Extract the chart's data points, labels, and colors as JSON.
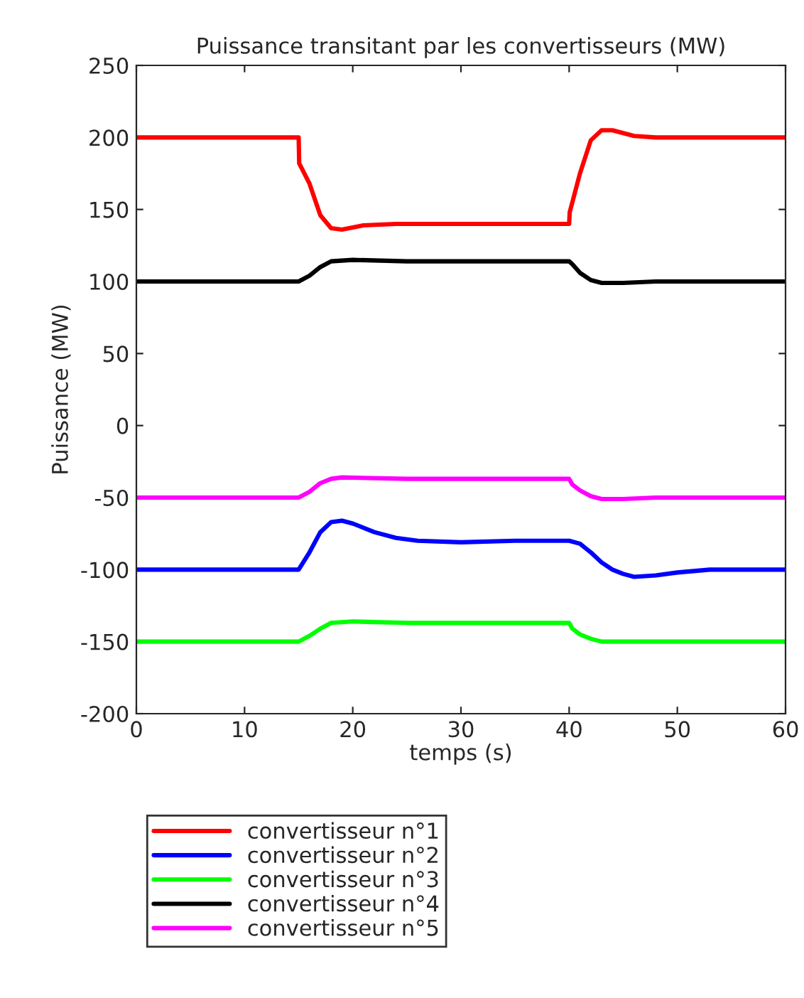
{
  "chart_data": {
    "type": "line",
    "title": "Puissance transitant par les convertisseurs (MW)",
    "xlabel": "temps (s)",
    "ylabel": "Puissance (MW)",
    "xlim": [
      0,
      60
    ],
    "xticks": [
      0,
      10,
      20,
      30,
      40,
      50,
      60
    ],
    "ylim": [
      -200,
      250
    ],
    "yticks": [
      -200,
      -150,
      -100,
      -50,
      0,
      50,
      100,
      150,
      200,
      250
    ],
    "grid": false,
    "legend": "bottom",
    "marker": "none",
    "line_style": "solid",
    "series": [
      {
        "name": "convertisseur n°1",
        "color": "#ff0000",
        "x": [
          0,
          15,
          15.05,
          16,
          17,
          18,
          19,
          21,
          24,
          40,
          40.05,
          41,
          42,
          43,
          44,
          46,
          48,
          60
        ],
        "values": [
          200,
          200,
          182,
          168,
          146,
          137,
          136,
          139,
          140,
          140,
          148,
          175,
          198,
          205,
          205,
          201,
          200,
          200
        ]
      },
      {
        "name": "convertisseur n°2",
        "color": "#0000ff",
        "x": [
          0,
          15,
          16,
          17,
          18,
          19,
          20,
          22,
          24,
          26,
          30,
          35,
          40,
          41,
          42,
          43,
          44,
          45,
          46,
          48,
          50,
          53,
          60
        ],
        "values": [
          -100,
          -100,
          -88,
          -74,
          -67,
          -66,
          -68,
          -74,
          -78,
          -80,
          -81,
          -80,
          -80,
          -82,
          -88,
          -95,
          -100,
          -103,
          -105,
          -104,
          -102,
          -100,
          -100
        ]
      },
      {
        "name": "convertisseur n°3",
        "color": "#00ff00",
        "x": [
          0,
          15,
          16,
          17,
          18,
          20,
          25,
          40,
          40.3,
          41,
          42,
          43,
          45,
          60
        ],
        "values": [
          -150,
          -150,
          -146,
          -141,
          -137,
          -136,
          -137,
          -137,
          -141,
          -145,
          -148,
          -150,
          -150,
          -150
        ]
      },
      {
        "name": "convertisseur n°4",
        "color": "#000000",
        "x": [
          0,
          15,
          16,
          17,
          18,
          20,
          25,
          40,
          40.3,
          41,
          42,
          43,
          45,
          48,
          60
        ],
        "values": [
          100,
          100,
          104,
          110,
          114,
          115,
          114,
          114,
          112,
          106,
          101,
          99,
          99,
          100,
          100
        ]
      },
      {
        "name": "convertisseur n°5",
        "color": "#ff00ff",
        "x": [
          0,
          15,
          16,
          17,
          18,
          19,
          25,
          40,
          40.3,
          41,
          42,
          43,
          45,
          48,
          60
        ],
        "values": [
          -50,
          -50,
          -46,
          -40,
          -37,
          -36,
          -37,
          -37,
          -41,
          -45,
          -49,
          -51,
          -51,
          -50,
          -50
        ]
      }
    ]
  }
}
